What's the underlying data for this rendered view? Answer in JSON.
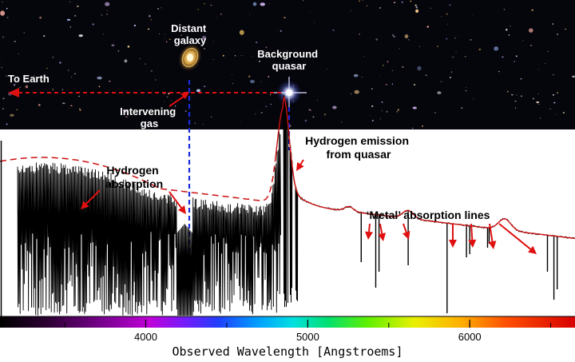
{
  "sky": {
    "distant_galaxy_label": [
      "Distant",
      "galaxy"
    ],
    "background_quasar_label": [
      "Background",
      "quasar"
    ],
    "to_earth_label": "To Earth",
    "intervening_gas_label": [
      "Intervening",
      "gas"
    ]
  },
  "annotations": {
    "hydrogen_absorption": [
      "Hydrogen",
      "absorption"
    ],
    "hydrogen_emission": [
      "Hydrogen emission",
      "from quasar"
    ],
    "metal_absorption": "‘Metal’ absorption lines"
  },
  "axis": {
    "title": "Observed Wavelength [Angstroems]",
    "ticks": [
      {
        "value": 4000,
        "label": "4000"
      },
      {
        "value": 5000,
        "label": "5000"
      },
      {
        "value": 6000,
        "label": "6000"
      }
    ],
    "xlim": [
      3100,
      6650
    ]
  },
  "colors": {
    "sky_bg": "#05050c",
    "dashed_sightline": "#dd1111",
    "projection_lines": "#1a2ad8",
    "continuum": "#cc1111",
    "arrows": "#e01010",
    "spectrum": "#000000"
  },
  "chart_data": {
    "type": "line",
    "x_range": [
      3100,
      6650
    ],
    "emission_peak": 4850,
    "galaxy_absorption": 4240,
    "metal_line_wavelengths": [
      5330,
      5420,
      5440,
      5620,
      5860,
      5980,
      6000,
      6110,
      6120,
      6480,
      6520,
      6540
    ]
  }
}
